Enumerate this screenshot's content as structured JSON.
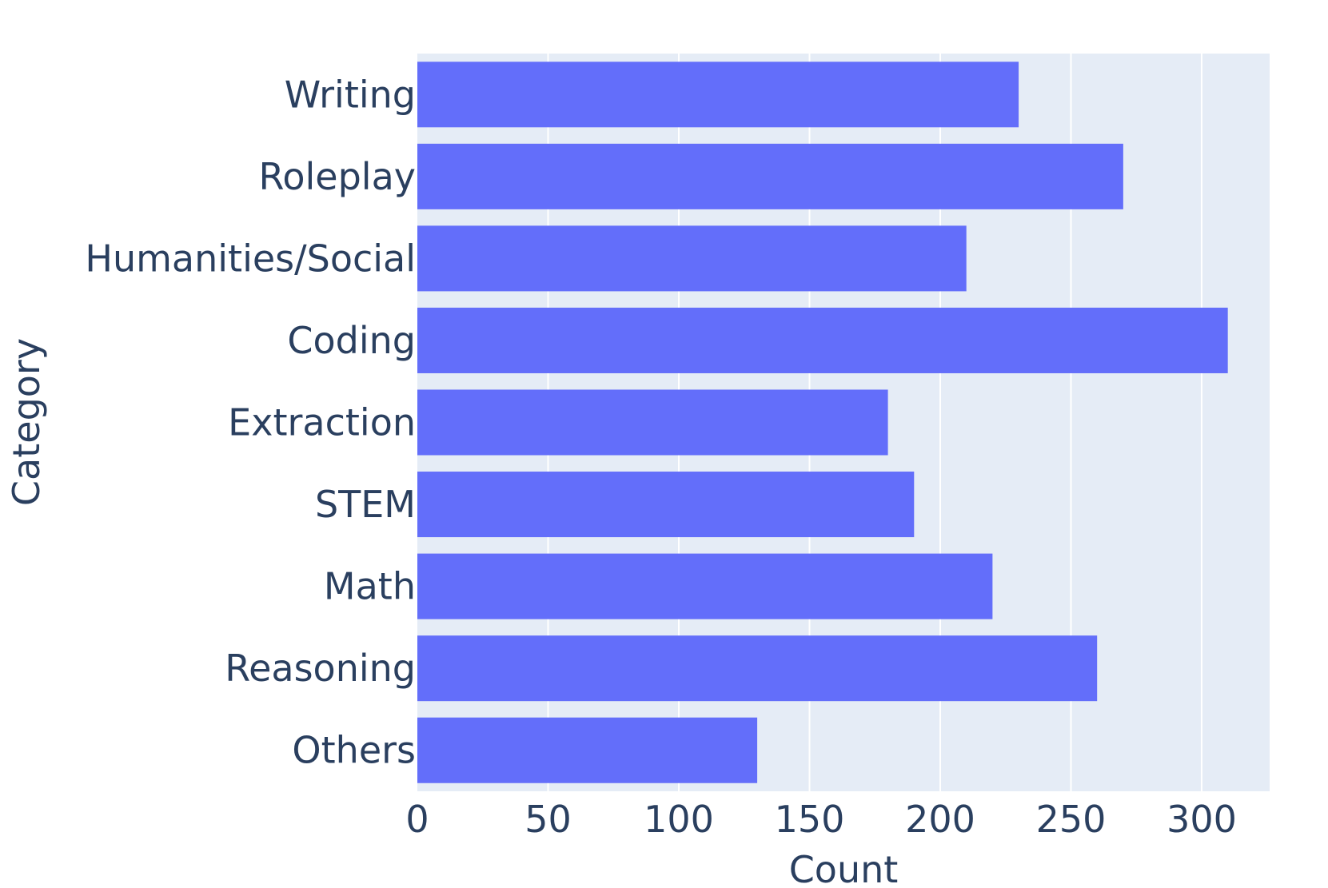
{
  "chart_data": {
    "type": "bar",
    "orientation": "horizontal",
    "categories": [
      "Writing",
      "Roleplay",
      "Humanities/Social",
      "Coding",
      "Extraction",
      "STEM",
      "Math",
      "Reasoning",
      "Others"
    ],
    "values": [
      230,
      270,
      210,
      310,
      180,
      190,
      220,
      260,
      130
    ],
    "xlabel": "Count",
    "ylabel": "Category",
    "xlim": [
      0,
      326
    ],
    "xticks": [
      0,
      50,
      100,
      150,
      200,
      250,
      300
    ],
    "grid": true,
    "legend": "none",
    "colors": {
      "bar": "#636efa",
      "plot_background": "#e5ecf6",
      "gridline": "#ffffff",
      "text": "#2a3f5f"
    }
  }
}
